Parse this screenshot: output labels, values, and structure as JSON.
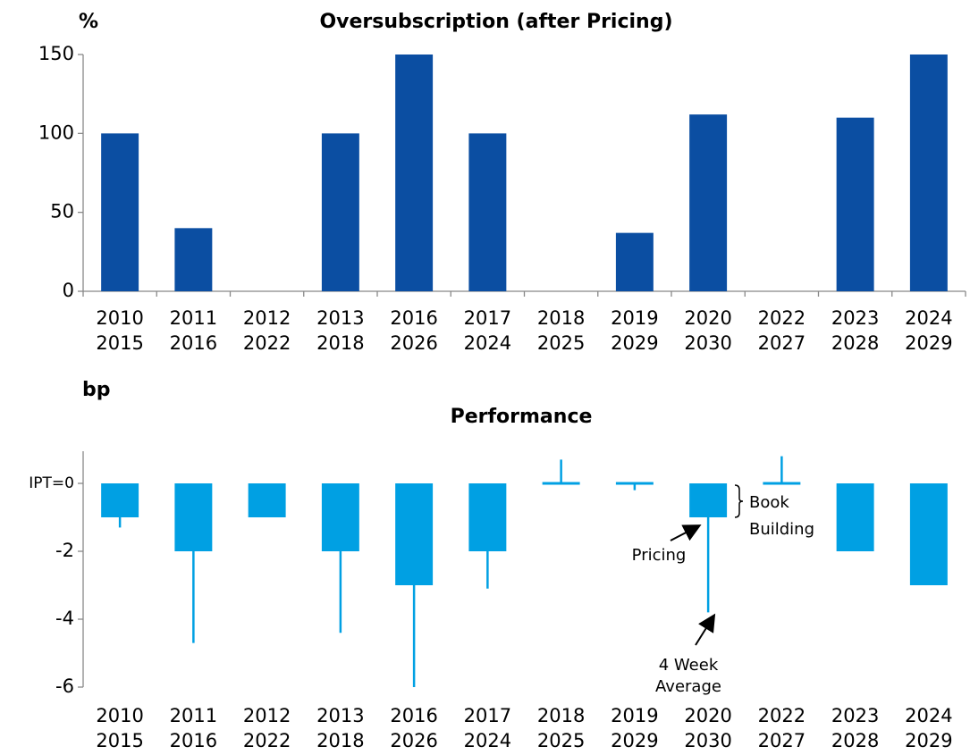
{
  "chart_data": [
    {
      "type": "bar",
      "title": "Oversubscription (after Pricing)",
      "unit_label": "%",
      "categories": [
        [
          "2010",
          "2015"
        ],
        [
          "2011",
          "2016"
        ],
        [
          "2012",
          "2022"
        ],
        [
          "2013",
          "2018"
        ],
        [
          "2016",
          "2026"
        ],
        [
          "2017",
          "2024"
        ],
        [
          "2018",
          "2025"
        ],
        [
          "2019",
          "2029"
        ],
        [
          "2020",
          "2030"
        ],
        [
          "2022",
          "2027"
        ],
        [
          "2023",
          "2028"
        ],
        [
          "2024",
          "2029"
        ]
      ],
      "values": [
        100,
        40,
        0,
        100,
        150,
        100,
        0,
        37,
        112,
        0,
        110,
        150
      ],
      "color": "#0b4ea2",
      "ylim": [
        0,
        150
      ],
      "yticks": [
        0,
        50,
        100,
        150
      ],
      "grid": false
    },
    {
      "type": "bar_range",
      "title": "Performance",
      "unit_label": "bp",
      "categories": [
        [
          "2010",
          "2015"
        ],
        [
          "2011",
          "2016"
        ],
        [
          "2012",
          "2022"
        ],
        [
          "2013",
          "2018"
        ],
        [
          "2016",
          "2026"
        ],
        [
          "2017",
          "2024"
        ],
        [
          "2018",
          "2025"
        ],
        [
          "2019",
          "2029"
        ],
        [
          "2020",
          "2030"
        ],
        [
          "2022",
          "2027"
        ],
        [
          "2023",
          "2028"
        ],
        [
          "2024",
          "2029"
        ]
      ],
      "series": [
        {
          "color": "#00a0e3",
          "values": [
            -1,
            -2,
            -1,
            -2,
            -3,
            -2,
            0,
            0,
            -1,
            0,
            -2,
            -3
          ]
        },
        {
          "color": "#00a0e3",
          "values": [
            -1.3,
            -4.7,
            null,
            -4.4,
            -6,
            -3.1,
            0.7,
            -0.2,
            -3.8,
            0.8,
            null,
            null
          ]
        }
      ],
      "annotations": {
        "pricing": "Pricing",
        "average": [
          "4 Week",
          "Average"
        ],
        "book": [
          "Book",
          "Building"
        ]
      },
      "ylim": [
        -6,
        1
      ],
      "yticks": [
        {
          "value": 0,
          "label": "IPT=0"
        },
        -2,
        -4,
        -6
      ],
      "grid": false
    }
  ]
}
